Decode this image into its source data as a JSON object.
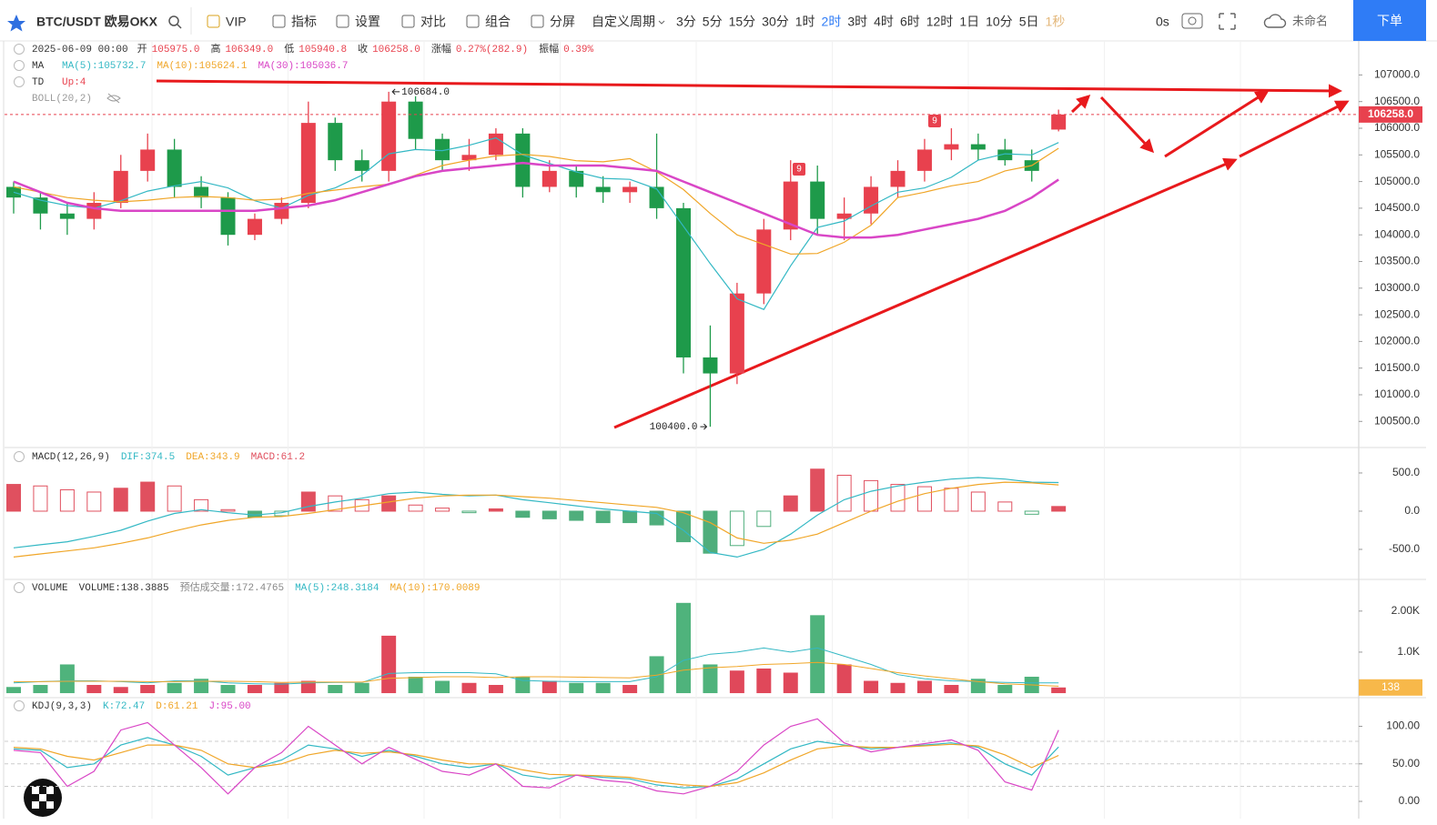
{
  "toolbar": {
    "symbol": "BTC/USDT 欧易OKX",
    "items": [
      "VIP",
      "指标",
      "设置",
      "对比",
      "组合",
      "分屏",
      "自定义周期"
    ],
    "periods": [
      "3分",
      "5分",
      "15分",
      "30分",
      "1时",
      "2时",
      "3时",
      "4时",
      "6时",
      "12时",
      "1日",
      "10分",
      "5日",
      "1秒"
    ],
    "active_period_index": 5,
    "timer": "0s",
    "layout_name": "未命名",
    "order_button": "下单"
  },
  "info": {
    "time": "2025-06-09 00:00",
    "fields": [
      {
        "label": "开",
        "value": "105975.0"
      },
      {
        "label": "高",
        "value": "106349.0"
      },
      {
        "label": "低",
        "value": "105940.8"
      },
      {
        "label": "收",
        "value": "106258.0"
      },
      {
        "label": "涨幅",
        "value": "0.27%(282.9)"
      },
      {
        "label": "振幅",
        "value": "0.39%"
      }
    ]
  },
  "chart_data": [
    {
      "type": "candlestick",
      "indicator": "MA",
      "td": {
        "name": "TD",
        "value": "Up:4"
      },
      "boll": "BOLL(20,2)",
      "td_markers": [
        "9",
        "9"
      ],
      "up_color": "#e8414e",
      "down_color": "#1e9a4a",
      "open": [
        104900,
        104700,
        104400,
        104300,
        104600,
        105200,
        105600,
        104900,
        104700,
        104000,
        104300,
        104600,
        106100,
        105400,
        105200,
        106500,
        105800,
        105400,
        105500,
        105900,
        104900,
        105200,
        104900,
        104800,
        104900,
        104500,
        101700,
        101400,
        102900,
        104100,
        105000,
        104300,
        104400,
        104900,
        105200,
        105600,
        105700,
        105600,
        105400,
        105975
      ],
      "high": [
        105000,
        104800,
        104600,
        104800,
        105500,
        105900,
        105800,
        105100,
        104800,
        104400,
        104700,
        106500,
        106200,
        105600,
        106684,
        106600,
        105900,
        105800,
        106000,
        106000,
        105400,
        105300,
        105100,
        105000,
        105900,
        104600,
        102300,
        103100,
        104300,
        105400,
        105300,
        104700,
        105100,
        105400,
        105800,
        106000,
        105900,
        105800,
        105600,
        106349
      ],
      "low": [
        104400,
        104100,
        104000,
        104100,
        104500,
        105000,
        104700,
        104500,
        103800,
        103900,
        104200,
        104500,
        105200,
        105000,
        105000,
        105600,
        105200,
        105200,
        105400,
        104700,
        104800,
        104700,
        104600,
        104600,
        104300,
        101400,
        100400,
        101200,
        102700,
        103900,
        104000,
        103900,
        104200,
        104700,
        105000,
        105400,
        105400,
        105300,
        105000,
        105940.8
      ],
      "close": [
        104700,
        104400,
        104300,
        104600,
        105200,
        105600,
        104900,
        104700,
        104000,
        104300,
        104600,
        106100,
        105400,
        105200,
        106500,
        105800,
        105400,
        105500,
        105900,
        104900,
        105200,
        104900,
        104800,
        104900,
        104500,
        101700,
        101400,
        102900,
        104100,
        105000,
        104300,
        104400,
        104900,
        105200,
        105600,
        105700,
        105600,
        105400,
        105200,
        106258
      ],
      "last_price_label": "106258.0",
      "high_label": "106684.0",
      "low_label": "100400.0",
      "series": [
        {
          "name": "MA(5):105732.7",
          "color": "#33b8c4",
          "width": 1.2,
          "values": [
            104800,
            104650,
            104550,
            104500,
            104640,
            104820,
            104920,
            105000,
            104880,
            104640,
            104500,
            104740,
            104880,
            105120,
            105520,
            105600,
            105580,
            105680,
            105820,
            105500,
            105340,
            105180,
            105060,
            105040,
            104860,
            104160,
            103460,
            102800,
            102600,
            103420,
            104140,
            104260,
            104540,
            104800,
            104880,
            105080,
            105400,
            105520,
            105500,
            105732.7
          ]
        },
        {
          "name": "MA(10):105624.1",
          "color": "#f0a628",
          "width": 1.2,
          "values": [
            104900,
            104800,
            104700,
            104650,
            104620,
            104650,
            104700,
            104720,
            104700,
            104650,
            104670,
            104780,
            104840,
            104900,
            104950,
            105120,
            105300,
            105400,
            105480,
            105510,
            105470,
            105390,
            105370,
            105430,
            105180,
            104850,
            104400,
            104000,
            103820,
            103640,
            103650,
            103860,
            104180,
            104700,
            104800,
            104920,
            105000,
            105200,
            105300,
            105624.1
          ]
        },
        {
          "name": "MA(30):105036.7",
          "color": "#d946c6",
          "width": 2.5,
          "values": [
            105000,
            104800,
            104600,
            104500,
            104450,
            104450,
            104450,
            104450,
            104450,
            104450,
            104500,
            104550,
            104650,
            104800,
            104950,
            105100,
            105200,
            105250,
            105300,
            105350,
            105300,
            105300,
            105300,
            105250,
            105200,
            105000,
            104800,
            104600,
            104400,
            104200,
            104000,
            103950,
            103950,
            104000,
            104100,
            104200,
            104300,
            104450,
            104700,
            105036.7
          ]
        }
      ],
      "ylim": [
        100010,
        107638
      ],
      "yticks": [
        {
          "value": 100500,
          "label": "100500.0"
        },
        {
          "value": 101000,
          "label": "101000.0"
        },
        {
          "value": 101500,
          "label": "101500.0"
        },
        {
          "value": 102000,
          "label": "102000.0"
        },
        {
          "value": 102500,
          "label": "102500.0"
        },
        {
          "value": 103000,
          "label": "103000.0"
        },
        {
          "value": 103500,
          "label": "103500.0"
        },
        {
          "value": 104000,
          "label": "104000.0"
        },
        {
          "value": 104500,
          "label": "104500.0"
        },
        {
          "value": 105000,
          "label": "105000.0"
        },
        {
          "value": 105500,
          "label": "105500.0"
        },
        {
          "value": 106000,
          "label": "106000.0"
        },
        {
          "value": 106500,
          "label": "106500.0"
        },
        {
          "value": 107000,
          "label": "107000.0"
        }
      ]
    },
    {
      "type": "macd",
      "indicator": "MACD(12,26,9)",
      "values_name": "MACD:61.2",
      "up_color": "#e0505f",
      "down_color": "#4fae7c",
      "values": [
        350,
        330,
        280,
        250,
        300,
        380,
        330,
        150,
        20,
        -80,
        -60,
        250,
        200,
        150,
        200,
        80,
        40,
        -20,
        30,
        -80,
        -100,
        -120,
        -150,
        -150,
        -180,
        -400,
        -550,
        -450,
        -200,
        200,
        550,
        470,
        400,
        350,
        320,
        300,
        250,
        120,
        -40,
        61.2
      ],
      "series": [
        {
          "name": "DIF:374.5",
          "color": "#33b8c4",
          "width": 1.2,
          "values": [
            -480,
            -440,
            -400,
            -330,
            -250,
            -130,
            -30,
            20,
            -20,
            -50,
            -20,
            60,
            120,
            170,
            230,
            250,
            220,
            200,
            210,
            150,
            110,
            70,
            30,
            0,
            -30,
            -250,
            -540,
            -600,
            -500,
            -300,
            -50,
            150,
            260,
            330,
            380,
            420,
            440,
            420,
            380,
            374.5
          ]
        },
        {
          "name": "DEA:343.9",
          "color": "#f0a628",
          "width": 1.2,
          "values": [
            -600,
            -560,
            -520,
            -480,
            -420,
            -350,
            -260,
            -180,
            -120,
            -80,
            -70,
            -30,
            20,
            70,
            120,
            170,
            200,
            210,
            210,
            190,
            170,
            140,
            110,
            80,
            50,
            -20,
            -150,
            -350,
            -420,
            -380,
            -300,
            -150,
            0,
            130,
            230,
            300,
            350,
            380,
            370,
            343.9
          ]
        }
      ],
      "ylim": [
        -893,
        821
      ],
      "yticks": [
        {
          "value": -500,
          "label": "-500.0"
        },
        {
          "value": 0,
          "label": "0.0"
        },
        {
          "value": 500,
          "label": "500.0"
        }
      ]
    },
    {
      "type": "bar",
      "indicator": "VOLUME",
      "values_name": "VOLUME:138.3885",
      "estimate": "预估成交量:172.4765",
      "up_color": "#e0485a",
      "down_color": "#4fb37c",
      "values": [
        150,
        200,
        700,
        200,
        150,
        200,
        250,
        350,
        200,
        200,
        250,
        300,
        200,
        250,
        1400,
        400,
        300,
        250,
        200,
        400,
        300,
        250,
        250,
        200,
        900,
        2200,
        700,
        550,
        600,
        500,
        1900,
        700,
        300,
        250,
        300,
        200,
        350,
        200,
        400,
        138.3885
      ],
      "last_label": "138",
      "series": [
        {
          "name": "MA(5):248.3184",
          "color": "#33b8c4",
          "width": 1,
          "values": [
            250,
            280,
            300,
            300,
            280,
            250,
            300,
            300,
            250,
            230,
            220,
            250,
            260,
            260,
            480,
            500,
            500,
            500,
            470,
            310,
            290,
            280,
            280,
            280,
            400,
            800,
            950,
            1000,
            1100,
            1000,
            1100,
            900,
            700,
            450,
            350,
            300,
            280,
            260,
            250,
            248.3184
          ]
        },
        {
          "name": "MA(10):170.0089",
          "color": "#f0a628",
          "width": 1,
          "values": [
            280,
            280,
            290,
            290,
            290,
            280,
            280,
            290,
            290,
            280,
            260,
            270,
            270,
            270,
            360,
            380,
            400,
            400,
            380,
            400,
            400,
            390,
            380,
            370,
            440,
            560,
            620,
            650,
            700,
            720,
            750,
            700,
            600,
            500,
            420,
            350,
            280,
            230,
            200,
            170.0089
          ]
        }
      ],
      "ylim": [
        -110,
        2750
      ],
      "yticks": [
        {
          "value": 1000,
          "label": "1.0K"
        },
        {
          "value": 2000,
          "label": "2.00K"
        }
      ]
    },
    {
      "type": "line",
      "indicator": "KDJ(9,3,3)",
      "levels": [
        20,
        50,
        80
      ],
      "series": [
        {
          "name": "K:72.47",
          "color": "#33b8c4",
          "width": 1.2,
          "values": [
            70,
            68,
            45,
            50,
            75,
            85,
            75,
            60,
            35,
            45,
            55,
            75,
            70,
            60,
            68,
            60,
            50,
            45,
            50,
            35,
            30,
            35,
            32,
            30,
            22,
            18,
            20,
            30,
            50,
            70,
            80,
            75,
            70,
            72,
            75,
            78,
            72,
            50,
            35,
            72.47
          ]
        },
        {
          "name": "D:61.21",
          "color": "#f0a628",
          "width": 1.2,
          "values": [
            72,
            70,
            60,
            55,
            65,
            75,
            75,
            68,
            50,
            45,
            50,
            62,
            68,
            64,
            66,
            62,
            55,
            50,
            50,
            42,
            36,
            35,
            34,
            32,
            26,
            22,
            20,
            25,
            38,
            55,
            70,
            74,
            72,
            72,
            74,
            76,
            74,
            62,
            45,
            61.21
          ]
        },
        {
          "name": "J:95.00",
          "color": "#d946c6",
          "width": 1.2,
          "values": [
            68,
            65,
            20,
            40,
            95,
            105,
            75,
            45,
            10,
            45,
            65,
            100,
            75,
            50,
            72,
            56,
            40,
            35,
            50,
            20,
            18,
            35,
            28,
            25,
            14,
            10,
            20,
            40,
            75,
            100,
            110,
            78,
            66,
            72,
            77,
            82,
            68,
            26,
            15,
            95
          ]
        }
      ],
      "ylim": [
        -23,
        137
      ],
      "yticks": [
        {
          "value": 0,
          "label": "0.00"
        },
        {
          "value": 50,
          "label": "50.00"
        },
        {
          "value": 100,
          "label": "100.00"
        }
      ]
    }
  ]
}
